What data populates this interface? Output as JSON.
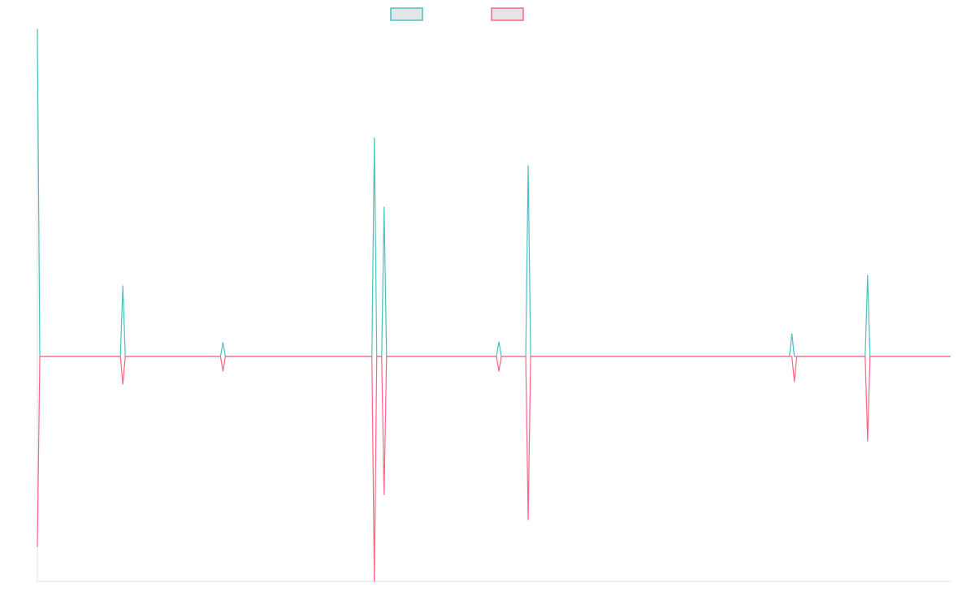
{
  "chart_data": {
    "type": "line",
    "title": "",
    "xlabel": "",
    "ylabel": "",
    "x_range": [
      0,
      374
    ],
    "ylim": [
      -277,
      403
    ],
    "grid": false,
    "tick_labels_shown": false,
    "legend_placement": "top-center",
    "series": [
      {
        "color": "#4bc0c0",
        "default_value": 0,
        "points": [
          [
            0,
            403
          ],
          [
            35,
            87
          ],
          [
            76,
            17
          ],
          [
            138,
            269
          ],
          [
            142,
            184
          ],
          [
            189,
            18
          ],
          [
            201,
            235
          ],
          [
            309,
            28
          ],
          [
            340,
            100
          ]
        ]
      },
      {
        "color": "#ff6384",
        "default_value": 0,
        "points": [
          [
            0,
            -234
          ],
          [
            35,
            -34
          ],
          [
            76,
            -18
          ],
          [
            138,
            -277
          ],
          [
            142,
            -170
          ],
          [
            189,
            -18
          ],
          [
            201,
            -201
          ],
          [
            310,
            -31
          ],
          [
            340,
            -104
          ]
        ]
      }
    ],
    "legend_swatch_fill": "#e5e5e5",
    "axis_color": "#e0e0e0"
  }
}
